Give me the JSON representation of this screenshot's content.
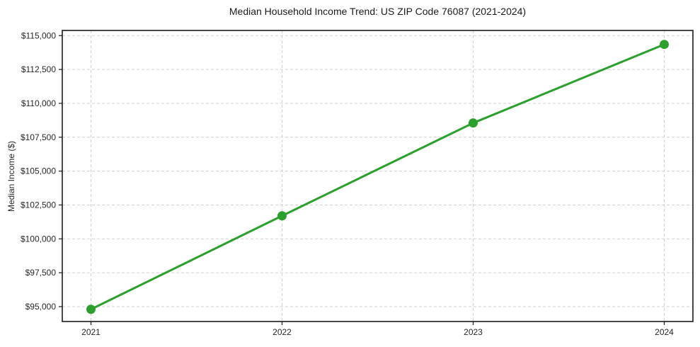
{
  "chart_data": {
    "type": "line",
    "title": "Median Household Income Trend: US ZIP Code 76087 (2021-2024)",
    "xlabel": "",
    "ylabel": "Median Income ($)",
    "x": [
      2021,
      2022,
      2023,
      2024
    ],
    "x_tick_labels": [
      "2021",
      "2022",
      "2023",
      "2024"
    ],
    "series": [
      {
        "name": "Median Household Income",
        "values": [
          94800,
          101700,
          108550,
          114350
        ]
      }
    ],
    "y_tick_values": [
      95000,
      97500,
      100000,
      102500,
      105000,
      107500,
      110000,
      112500,
      115000
    ],
    "y_tick_labels": [
      "$95,000",
      "$97,500",
      "$100,000",
      "$102,500",
      "$105,000",
      "$107,500",
      "$110,000",
      "$112,500",
      "$115,000"
    ],
    "xlim": [
      2020.85,
      2024.15
    ],
    "ylim": [
      93900,
      115380
    ],
    "grid": true,
    "legend": false,
    "colors": {
      "line": "#2ca02c",
      "marker": "#2ca02c",
      "grid": "#cfcfcf",
      "spine": "#1a1a1a",
      "text": "#262626",
      "background": "#ffffff"
    }
  }
}
